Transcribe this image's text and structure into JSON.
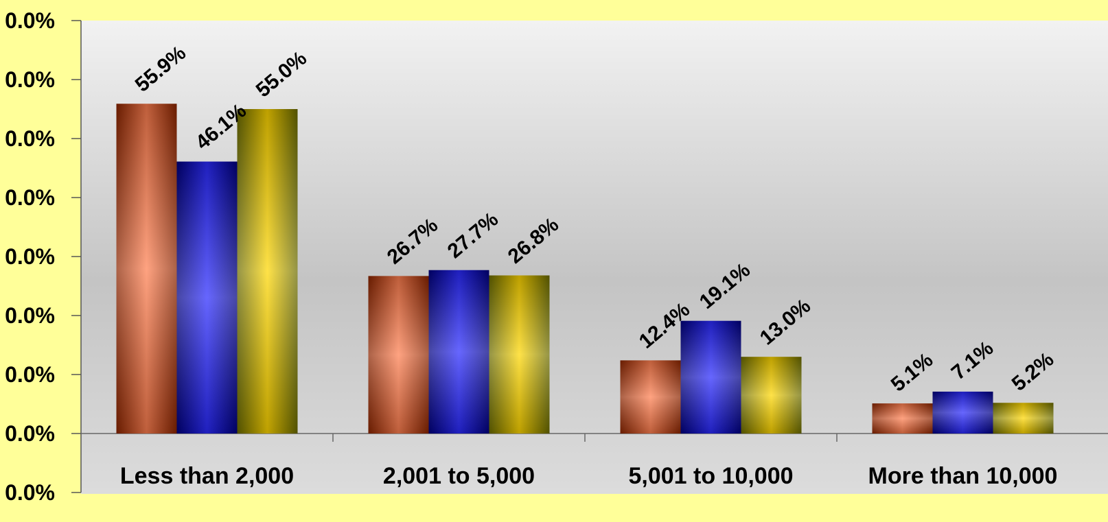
{
  "chart_data": {
    "type": "bar",
    "categories": [
      "Less than 2,000",
      "2,001 to 5,000",
      "5,001 to 10,000",
      "More than 10,000"
    ],
    "series": [
      {
        "values": [
          55.9,
          26.7,
          12.4,
          5.1
        ],
        "labels": [
          "55.9%",
          "26.7%",
          "12.4%",
          "5.1%"
        ],
        "color": "#ff7f50",
        "edge": "#8b2500"
      },
      {
        "values": [
          46.1,
          27.7,
          19.1,
          7.1
        ],
        "labels": [
          "46.1%",
          "27.7%",
          "19.1%",
          "7.1%"
        ],
        "color": "#2b2bff",
        "edge": "#000080"
      },
      {
        "values": [
          55.0,
          26.8,
          13.0,
          5.2
        ],
        "labels": [
          "55.0%",
          "26.8%",
          "13.0%",
          "5.2%"
        ],
        "color": "#ffd700",
        "edge": "#6b6b00"
      }
    ],
    "y_ticks": [
      "0.0%",
      "0.0%",
      "0.0%",
      "0.0%",
      "0.0%",
      "0.0%",
      "0.0%",
      "0.0%",
      "0.0%"
    ],
    "ylim": [
      -10,
      70
    ],
    "grid": false,
    "background": "#ffff99",
    "plot_background": "#d9d9d9"
  }
}
